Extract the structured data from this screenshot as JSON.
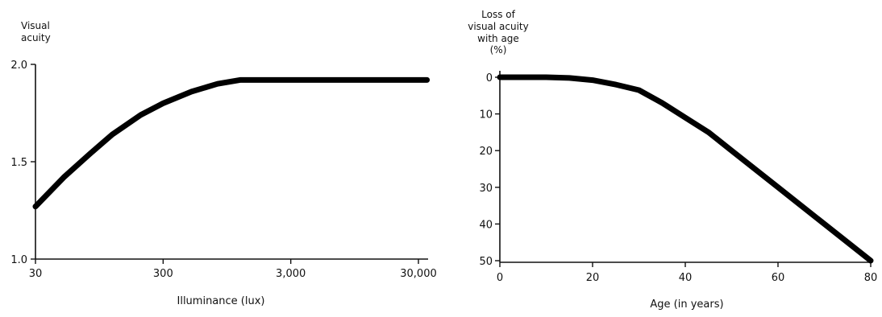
{
  "chart_data": [
    {
      "type": "line",
      "title": "",
      "ylabel_lines": [
        "Visual",
        "acuity"
      ],
      "xlabel": "Illuminance (lux)",
      "x_scale": "log",
      "xlim": [
        30,
        40000
      ],
      "ylim": [
        1.0,
        2.0
      ],
      "x_ticks": [
        30,
        300,
        3000,
        30000
      ],
      "x_tick_labels": [
        "30",
        "300",
        "3,000",
        "30,000"
      ],
      "y_ticks": [
        1.0,
        1.5,
        2.0
      ],
      "y_tick_labels": [
        "1.0",
        "1.5",
        "2.0"
      ],
      "grid": false,
      "series": [
        {
          "x": [
            30,
            50,
            80,
            120,
            200,
            300,
            500,
            800,
            1200,
            1600,
            2000,
            3000,
            5000,
            10000,
            20000,
            35000
          ],
          "y": [
            1.27,
            1.42,
            1.54,
            1.64,
            1.74,
            1.8,
            1.86,
            1.9,
            1.92,
            1.92,
            1.92,
            1.92,
            1.92,
            1.92,
            1.92,
            1.92
          ]
        }
      ]
    },
    {
      "type": "line",
      "title": "",
      "ylabel_lines": [
        "Loss of",
        "visual acuity",
        "with age",
        "(%)"
      ],
      "xlabel": "Age (in years)",
      "xlim": [
        0,
        80
      ],
      "ylim": [
        0,
        50
      ],
      "y_inverted": true,
      "x_ticks": [
        0,
        20,
        40,
        60,
        80
      ],
      "x_tick_labels": [
        "0",
        "20",
        "40",
        "60",
        "80"
      ],
      "y_ticks": [
        0,
        10,
        20,
        30,
        40,
        50
      ],
      "y_tick_labels": [
        "0",
        "10",
        "20",
        "30",
        "40",
        "50"
      ],
      "grid": false,
      "series": [
        {
          "x": [
            0,
            10,
            15,
            20,
            25,
            30,
            35,
            40,
            45,
            50,
            60,
            70,
            80
          ],
          "y": [
            0,
            0,
            0.2,
            0.8,
            2,
            3.5,
            7,
            11,
            15,
            20,
            30,
            40,
            50
          ]
        }
      ]
    }
  ]
}
